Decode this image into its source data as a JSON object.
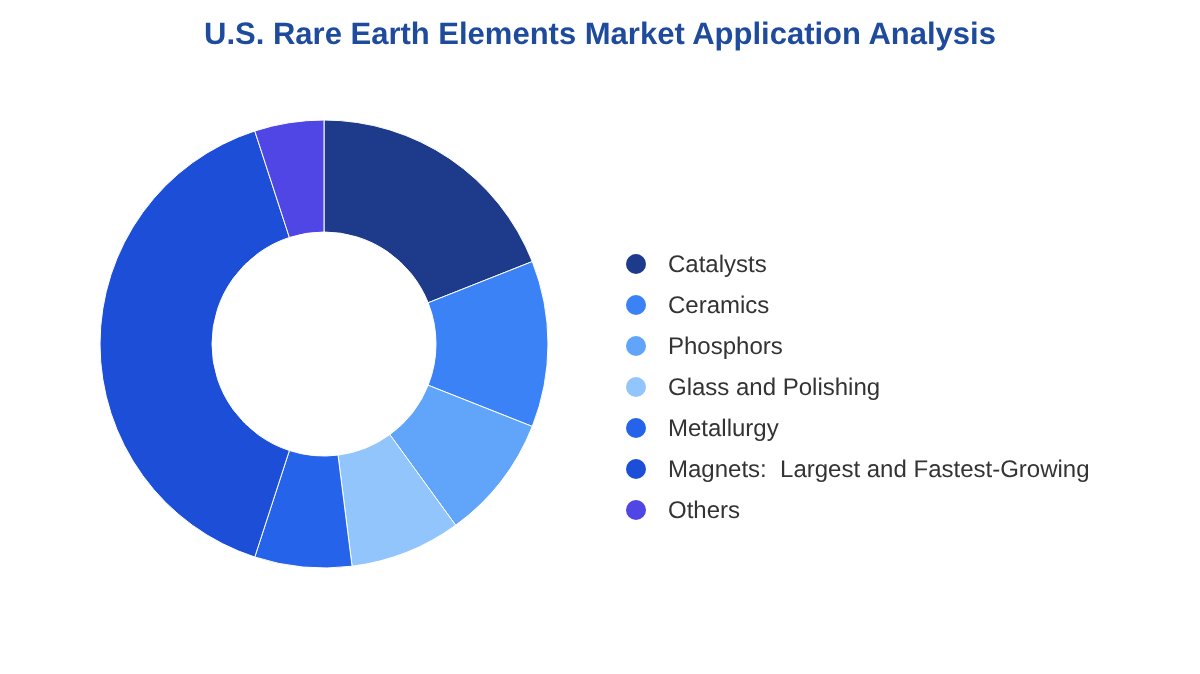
{
  "chart_data": {
    "type": "donut",
    "title": "U.S. Rare Earth Elements Market Application Analysis",
    "categories": [
      "Catalysts",
      "Ceramics",
      "Phosphors",
      "Glass and Polishing",
      "Metallurgy",
      "Magnets:  Largest and Fastest-Growing",
      "Others"
    ],
    "values": [
      19,
      12,
      9,
      8,
      7,
      40,
      5
    ],
    "colors": [
      "#1e3a8a",
      "#3b82f6",
      "#60a5fa",
      "#93c5fd",
      "#2563eb",
      "#1d4ed8",
      "#4f46e5"
    ],
    "legend": "right"
  }
}
